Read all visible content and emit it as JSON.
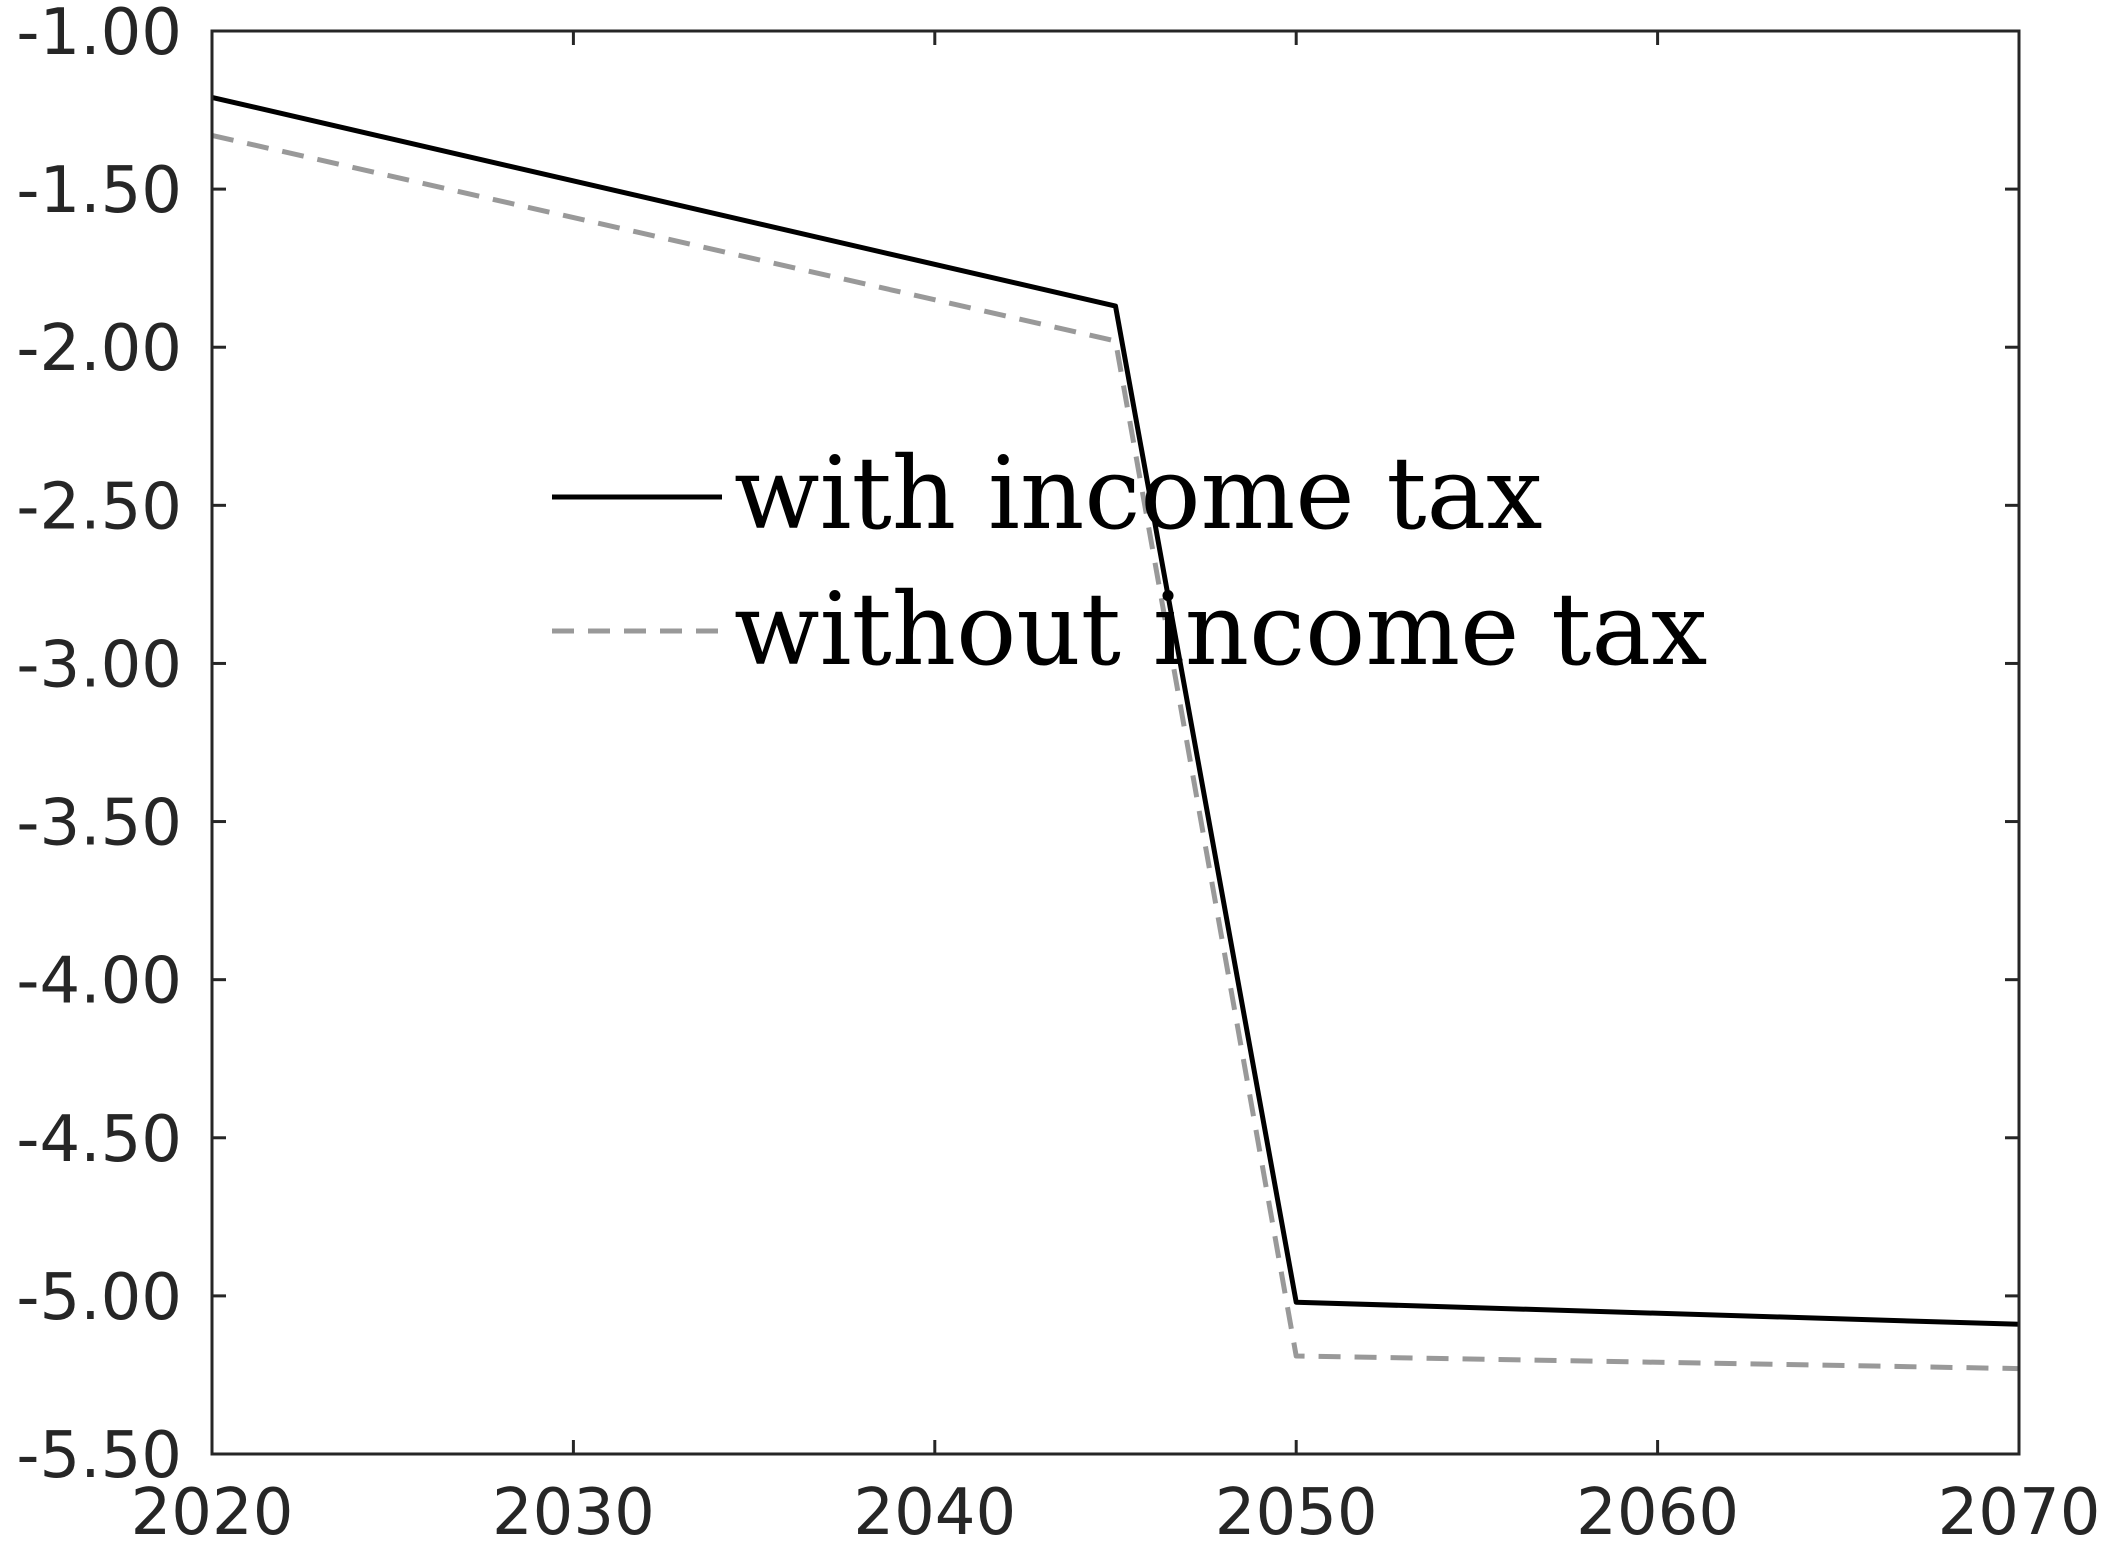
{
  "chart_data": {
    "type": "line",
    "title": "",
    "xlabel": "",
    "ylabel": "",
    "xlim": [
      2020,
      2070
    ],
    "ylim": [
      -5.5,
      -1.0
    ],
    "x_ticks": [
      "2020",
      "2030",
      "2040",
      "2050",
      "2060",
      "2070"
    ],
    "y_ticks": [
      "-1.00",
      "-1.50",
      "-2.00",
      "-2.50",
      "-3.00",
      "-3.50",
      "-4.00",
      "-4.50",
      "-5.00",
      "-5.50"
    ],
    "grid": false,
    "legend_position": "center",
    "series": [
      {
        "name": "with income tax",
        "color": "#000000",
        "style": "solid",
        "x": [
          2020,
          2045,
          2050,
          2070
        ],
        "y": [
          -1.21,
          -1.87,
          -5.02,
          -5.09
        ]
      },
      {
        "name": "without income tax",
        "color": "#999999",
        "style": "dashed",
        "x": [
          2020,
          2045,
          2050,
          2070
        ],
        "y": [
          -1.33,
          -1.98,
          -5.19,
          -5.23
        ]
      }
    ]
  }
}
